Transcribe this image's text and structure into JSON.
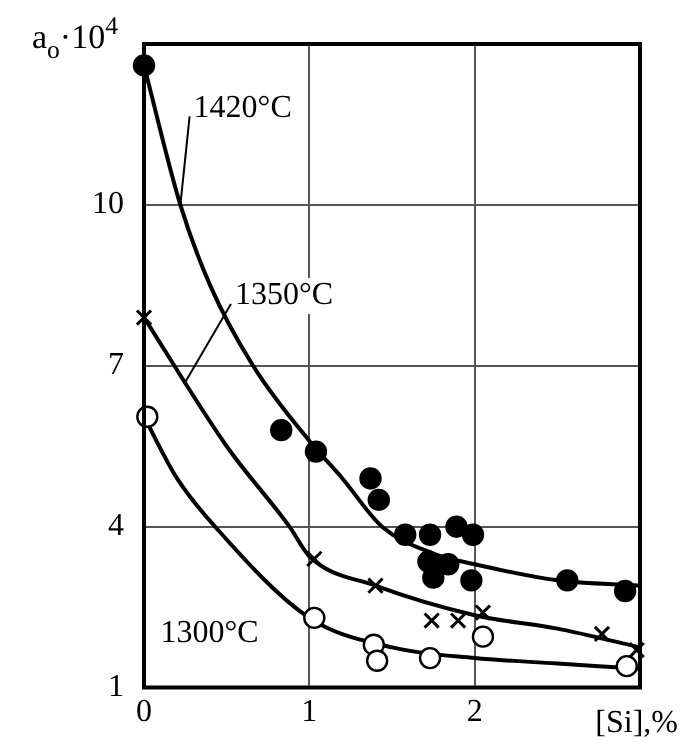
{
  "chart_data": {
    "type": "scatter",
    "ylabel": "a$_{o}$·10$^{4}$",
    "xlabel": "[Si],%",
    "xlim": [
      0,
      3
    ],
    "xticks": [
      0,
      1,
      2
    ],
    "ylim": [
      1,
      13
    ],
    "yticks": [
      1,
      4,
      7,
      10
    ],
    "grid": true,
    "legend": false,
    "series": [
      {
        "name": "1420°C",
        "type": "line",
        "color": "#000000",
        "marker": "none",
        "x": [
          0,
          0.22,
          0.4,
          0.66,
          1,
          1.2,
          1.44,
          1.75,
          2,
          2.5,
          3
        ],
        "values": [
          12.6,
          10,
          8.5,
          7,
          5.6,
          4.9,
          4,
          3.5,
          3.3,
          3.0,
          2.9
        ]
      },
      {
        "name": "1350°C",
        "type": "line",
        "color": "#000000",
        "marker": "none",
        "x": [
          0,
          0.5,
          0.88,
          1,
          1.4,
          2,
          2.5,
          3
        ],
        "values": [
          7.9,
          5.5,
          4,
          3.45,
          2.9,
          2.35,
          2.1,
          1.75
        ]
      },
      {
        "name": "1300°C",
        "type": "line",
        "color": "#000000",
        "marker": "none",
        "x": [
          0,
          0.2,
          0.43,
          1,
          1.5,
          2,
          2.5,
          3
        ],
        "values": [
          6.05,
          4.9,
          4,
          2.3,
          1.75,
          1.55,
          1.45,
          1.35
        ]
      },
      {
        "color": "#000000",
        "marker": "circle",
        "x": [
          0,
          0.83,
          1.04,
          1.37,
          1.42,
          1.58,
          1.73,
          1.89,
          1.99,
          1.72,
          1.75,
          1.84,
          1.98,
          2.56,
          2.91
        ],
        "values": [
          12.6,
          5.8,
          5.4,
          4.9,
          4.5,
          3.85,
          3.85,
          4.0,
          3.85,
          3.35,
          3.05,
          3.3,
          3.0,
          3.0,
          2.8
        ]
      },
      {
        "color": "#000000",
        "marker": "cross",
        "x": [
          0,
          1.03,
          1.4,
          1.74,
          1.9,
          2.05,
          2.77,
          2.98
        ],
        "values": [
          7.9,
          3.4,
          2.9,
          2.25,
          2.25,
          2.4,
          2.0,
          1.7
        ]
      },
      {
        "color": "#ffffff",
        "marker": "circle",
        "x": [
          0.02,
          1.03,
          1.39,
          1.41,
          1.73,
          2.05,
          2.92
        ],
        "values": [
          6.05,
          2.3,
          1.8,
          1.5,
          1.55,
          1.95,
          1.4
        ]
      }
    ]
  }
}
